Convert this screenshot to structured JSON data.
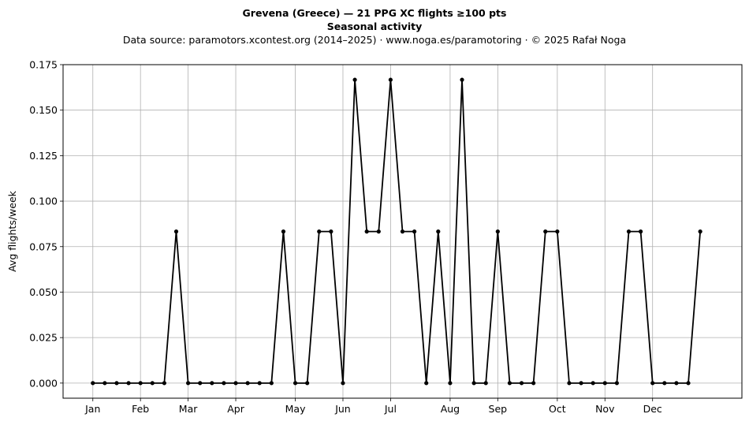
{
  "header": {
    "title": "Grevena (Greece)  —  21 PPG XC flights ≥100 pts",
    "subtitle": "Seasonal activity",
    "source": "Data source: paramotors.xcontest.org (2014–2025)  ·  www.noga.es/paramotoring  ·  © 2025 Rafał Noga"
  },
  "chart_data": {
    "type": "line",
    "title": "Grevena (Greece)  —  21 PPG XC flights ≥100 pts",
    "subtitle": "Seasonal activity",
    "xlabel": "",
    "ylabel": "Avg flights/week",
    "x_unit": "week of year",
    "x": [
      1,
      2,
      3,
      4,
      5,
      6,
      7,
      8,
      9,
      10,
      11,
      12,
      13,
      14,
      15,
      16,
      17,
      18,
      19,
      20,
      21,
      22,
      23,
      24,
      25,
      26,
      27,
      28,
      29,
      30,
      31,
      32,
      33,
      34,
      35,
      36,
      37,
      38,
      39,
      40,
      41,
      42,
      43,
      44,
      45,
      46,
      47,
      48,
      49,
      50,
      51,
      52
    ],
    "series": [
      {
        "values": [
          0,
          0,
          0,
          0,
          0,
          0,
          0,
          0.0833,
          0,
          0,
          0,
          0,
          0,
          0,
          0,
          0,
          0.0833,
          0,
          0,
          0.0833,
          0.0833,
          0,
          0.1667,
          0.0833,
          0.0833,
          0.1667,
          0.0833,
          0.0833,
          0,
          0.0833,
          0,
          0.1667,
          0,
          0,
          0.0833,
          0,
          0,
          0,
          0.0833,
          0.0833,
          0,
          0,
          0,
          0,
          0,
          0.0833,
          0.0833,
          0,
          0,
          0,
          0,
          0.0833
        ],
        "color": "#000000"
      }
    ],
    "xticks": [
      {
        "label": "Jan",
        "x": 1
      },
      {
        "label": "Feb",
        "x": 5
      },
      {
        "label": "Mar",
        "x": 9
      },
      {
        "label": "Apr",
        "x": 13
      },
      {
        "label": "May",
        "x": 18
      },
      {
        "label": "Jun",
        "x": 22
      },
      {
        "label": "Jul",
        "x": 26
      },
      {
        "label": "Aug",
        "x": 31
      },
      {
        "label": "Sep",
        "x": 35
      },
      {
        "label": "Oct",
        "x": 40
      },
      {
        "label": "Nov",
        "x": 44
      },
      {
        "label": "Dec",
        "x": 48
      }
    ],
    "yticks": [
      "0.000",
      "0.025",
      "0.050",
      "0.075",
      "0.100",
      "0.125",
      "0.150",
      "0.175"
    ],
    "xlim": [
      -1.5,
      55.5
    ],
    "ylim": [
      -0.0083,
      0.175
    ],
    "grid": true,
    "marker": "dot"
  }
}
